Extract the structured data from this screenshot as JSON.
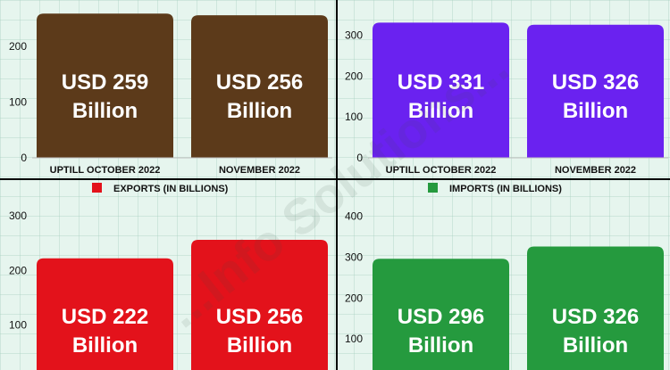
{
  "chart_data": [
    {
      "type": "bar",
      "categories": [
        "UPTILL OCTOBER 2022",
        "NOVEMBER 2022"
      ],
      "values": [
        259,
        256
      ],
      "bar_labels": [
        "USD 259\nBillion",
        "USD 256\nBillion"
      ],
      "ylim": [
        0,
        265
      ],
      "yticks": [
        0,
        100,
        200
      ],
      "colors": [
        "#5c3a1a",
        "#5c3a1a"
      ]
    },
    {
      "type": "bar",
      "categories": [
        "UPTILL OCTOBER 2022",
        "NOVEMBER 2022"
      ],
      "values": [
        331,
        326
      ],
      "bar_labels": [
        "USD 331\nBillion",
        "USD 326\nBillion"
      ],
      "ylim": [
        0,
        340
      ],
      "yticks": [
        0,
        100,
        200,
        300
      ],
      "colors": [
        "#6a22f0",
        "#6a22f0"
      ]
    },
    {
      "type": "bar",
      "categories": [
        "",
        ""
      ],
      "values": [
        222,
        256
      ],
      "bar_labels": [
        "USD 222\nBillion",
        "USD 256\nBillion"
      ],
      "ylim": [
        0,
        300
      ],
      "yticks": [
        100,
        200,
        300
      ],
      "colors": [
        "#e3121b",
        "#e3121b"
      ]
    },
    {
      "type": "bar",
      "categories": [
        "",
        ""
      ],
      "values": [
        296,
        326
      ],
      "bar_labels": [
        "USD 296\nBillion",
        "USD 326\nBillion"
      ],
      "ylim": [
        0,
        400
      ],
      "yticks": [
        100,
        200,
        300,
        400
      ],
      "colors": [
        "#259a3e",
        "#259a3e"
      ]
    }
  ],
  "legends": [
    {
      "label": "EXPORTS (IN BILLIONS)",
      "color": "#e3121b"
    },
    {
      "label": "IMPORTS (IN BILLIONS)",
      "color": "#259a3e"
    }
  ],
  "watermark": "...Info Solutions..."
}
